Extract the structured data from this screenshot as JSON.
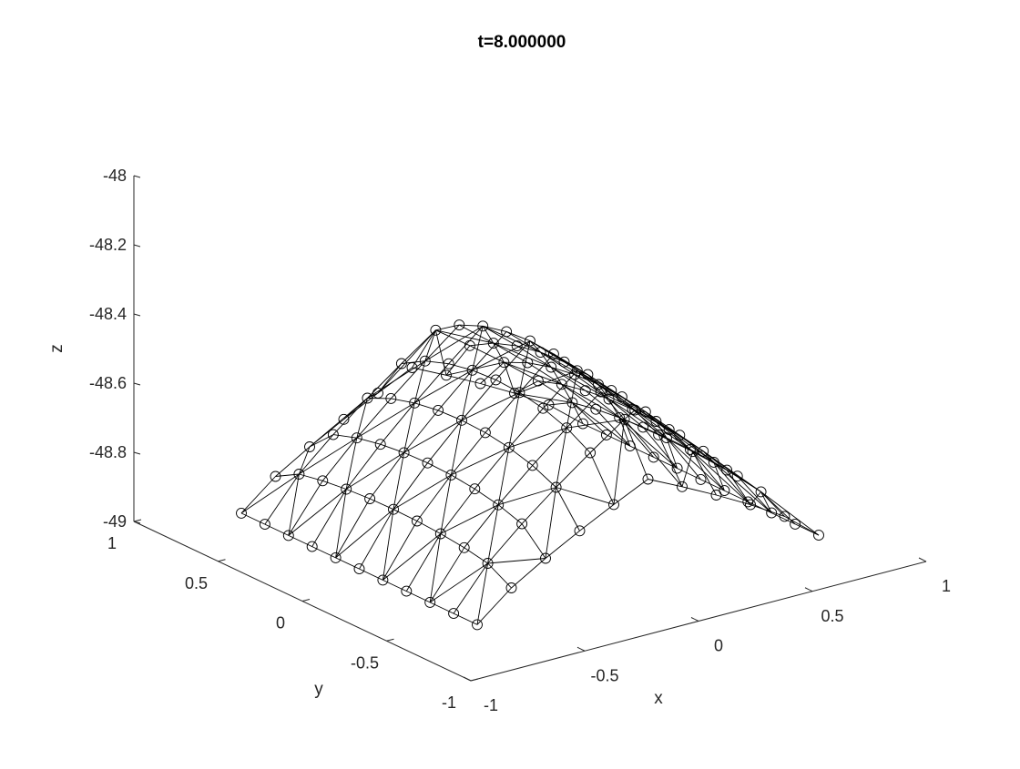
{
  "chart_data": {
    "type": "scatter3d-mesh",
    "title": "t=8.000000",
    "xlabel": "x",
    "ylabel": "y",
    "zlabel": "z",
    "xlim": [
      -1,
      1
    ],
    "ylim": [
      -1,
      1
    ],
    "zlim": [
      -49,
      -48
    ],
    "x_ticks": [
      "-1",
      "-0.5",
      "0",
      "0.5",
      "1"
    ],
    "y_ticks": [
      "-1",
      "-0.5",
      "0",
      "0.5",
      "1"
    ],
    "z_ticks": [
      "-49",
      "-48.8",
      "-48.6",
      "-48.4",
      "-48.2",
      "-48"
    ],
    "grid": false,
    "marker": "circle",
    "color": "#000000",
    "mesh": {
      "x_range": [
        -0.75,
        0.75
      ],
      "y_range": [
        -0.7,
        0.7
      ],
      "z_range": [
        -48.95,
        -48.42
      ],
      "nx": 11,
      "ny": 11,
      "shape": "tent / ridge along y, corners drooping to z≈-48.95"
    }
  }
}
